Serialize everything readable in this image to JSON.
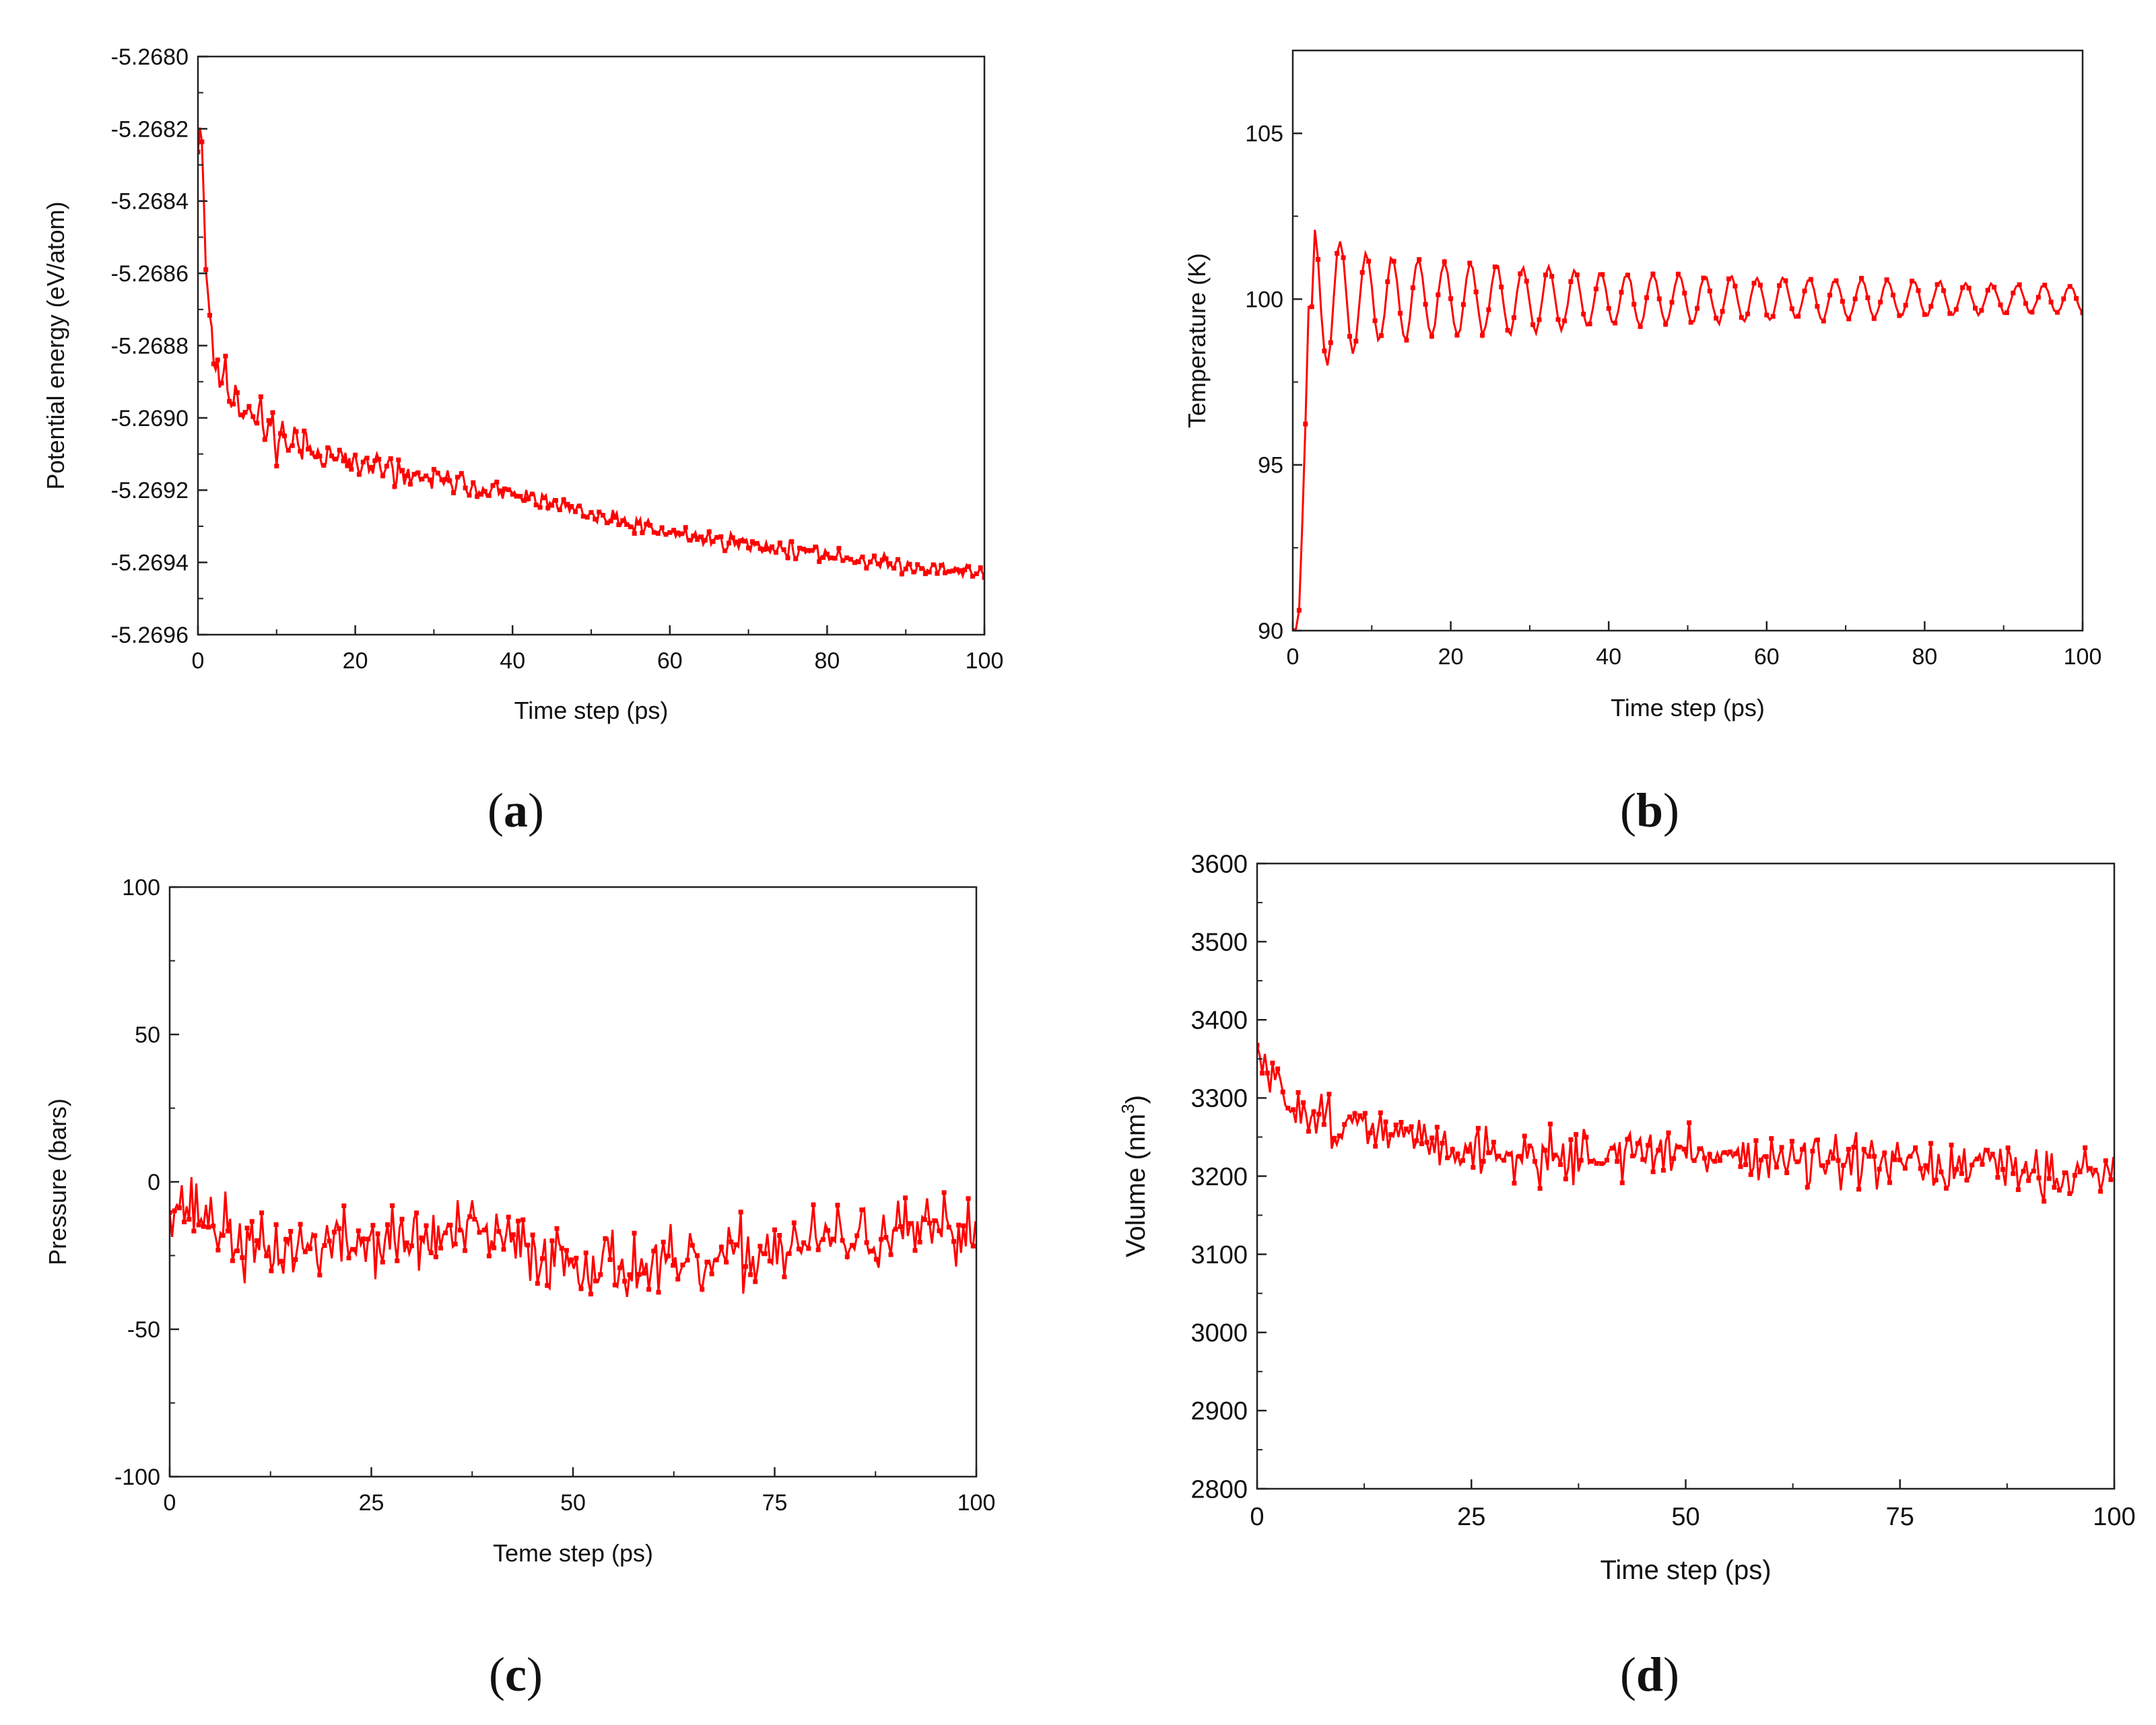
{
  "chart_data": [
    {
      "panel": "a",
      "type": "line",
      "xlabel": "Time step (ps)",
      "ylabel": "Potential energy (eV/atom)",
      "xlim": [
        0,
        100
      ],
      "ylim": [
        -5.2696,
        -5.268
      ],
      "xticks": [
        0,
        20,
        40,
        60,
        80,
        100
      ],
      "yticks": [
        -5.2696,
        -5.2694,
        -5.2692,
        -5.269,
        -5.2688,
        -5.2686,
        -5.2684,
        -5.2682,
        -5.268
      ],
      "ytick_decimals": 4,
      "series_color": "#ff0000",
      "trend": [
        [
          0.5,
          -5.26823
        ],
        [
          1,
          -5.26855
        ],
        [
          2,
          -5.26885
        ],
        [
          5,
          -5.26895
        ],
        [
          10,
          -5.26905
        ],
        [
          20,
          -5.26913
        ],
        [
          30,
          -5.26917
        ],
        [
          40,
          -5.26921
        ],
        [
          50,
          -5.26927
        ],
        [
          60,
          -5.26932
        ],
        [
          70,
          -5.26935
        ],
        [
          80,
          -5.26938
        ],
        [
          90,
          -5.26941
        ],
        [
          100,
          -5.26943
        ]
      ],
      "noise_amplitude": [
        [
          0,
          6e-05
        ],
        [
          20,
          4e-05
        ],
        [
          40,
          2.5e-05
        ],
        [
          100,
          1.5e-05
        ]
      ],
      "sample_step": 0.25,
      "oscillation_period": 1.5,
      "seed": 11
    },
    {
      "panel": "b",
      "type": "line",
      "xlabel": "Time step (ps)",
      "ylabel": "Temperature (K)",
      "xlim": [
        0,
        100
      ],
      "ylim": [
        90,
        107.5
      ],
      "xticks": [
        0,
        20,
        40,
        60,
        80,
        100
      ],
      "yticks": [
        90,
        95,
        100,
        105
      ],
      "ytick_decimals": 0,
      "series_color": "#ff0000",
      "trend": [
        [
          0.7,
          90
        ],
        [
          1.4,
          94.5
        ],
        [
          2,
          99.8
        ],
        [
          4,
          100
        ],
        [
          100,
          100
        ]
      ],
      "oscillation_start": 2.7,
      "oscillation_period": 3.3,
      "oscillation_amplitude": [
        [
          2.7,
          2.2
        ],
        [
          10,
          1.3
        ],
        [
          40,
          0.8
        ],
        [
          100,
          0.4
        ]
      ],
      "noise_amplitude": [
        [
          0,
          0.1
        ],
        [
          100,
          0.05
        ]
      ],
      "sample_step": 0.4,
      "seed": 23
    },
    {
      "panel": "c",
      "type": "line",
      "xlabel": "Teme step (ps)",
      "ylabel": "Pressure (bars)",
      "xlim": [
        0,
        100
      ],
      "ylim": [
        -100,
        100
      ],
      "xticks": [
        0,
        25,
        50,
        75,
        100
      ],
      "yticks": [
        -100,
        -50,
        0,
        50,
        100
      ],
      "ytick_decimals": 0,
      "series_color": "#ff0000",
      "trend": [
        [
          0,
          -5
        ],
        [
          5,
          -12
        ],
        [
          10,
          -24
        ],
        [
          20,
          -21
        ],
        [
          30,
          -20
        ],
        [
          38,
          -17
        ],
        [
          45,
          -24
        ],
        [
          55,
          -28
        ],
        [
          65,
          -30
        ],
        [
          75,
          -22
        ],
        [
          85,
          -19
        ],
        [
          100,
          -17
        ]
      ],
      "noise_amplitude": [
        [
          0,
          13
        ],
        [
          100,
          13
        ]
      ],
      "sample_step": 0.3,
      "seed": 37
    },
    {
      "panel": "d",
      "type": "line",
      "xlabel": "Time step (ps)",
      "ylabel": "Volume (nm",
      "ylabel_sup": "3",
      "ylabel_end": ")",
      "xlim": [
        0,
        100
      ],
      "ylim": [
        2800,
        3600
      ],
      "xticks": [
        0,
        25,
        50,
        75,
        100
      ],
      "yticks": [
        2800,
        2900,
        3000,
        3100,
        3200,
        3300,
        3400,
        3500,
        3600
      ],
      "ytick_decimals": 0,
      "series_color": "#ff0000",
      "trend": [
        [
          0,
          3355
        ],
        [
          1,
          3335
        ],
        [
          3,
          3300
        ],
        [
          10,
          3265
        ],
        [
          20,
          3245
        ],
        [
          30,
          3225
        ],
        [
          45,
          3230
        ],
        [
          55,
          3230
        ],
        [
          65,
          3215
        ],
        [
          80,
          3210
        ],
        [
          100,
          3205
        ]
      ],
      "noise_amplitude": [
        [
          0,
          35
        ],
        [
          100,
          38
        ]
      ],
      "sample_step": 0.3,
      "seed": 51
    }
  ],
  "panel_labels": {
    "a": {
      "open": "(",
      "letter": "a",
      "close": ")"
    },
    "b": {
      "open": "(",
      "letter": "b",
      "close": ")"
    },
    "c": {
      "open": "(",
      "letter": "c",
      "close": ")"
    },
    "d": {
      "open": "(",
      "letter": "d",
      "close": ")"
    }
  }
}
